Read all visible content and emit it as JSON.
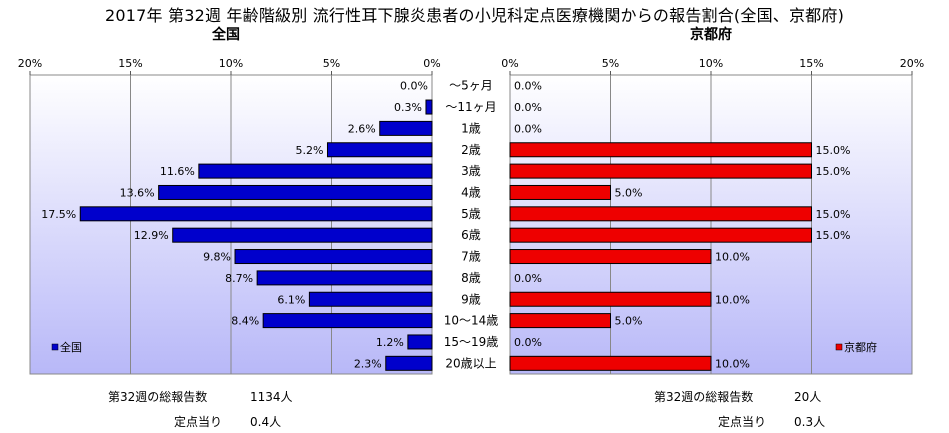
{
  "title": "2017年  第32週  年齢階級別  流行性耳下腺炎患者の小児科定点医療機関からの報告割合(全国、京都府)",
  "chart_data": [
    {
      "type": "bar",
      "orientation": "horizontal",
      "title": "全国",
      "legend": {
        "label": "全国",
        "position": "bottom-left"
      },
      "xlim": [
        0,
        20
      ],
      "x_reversed": true,
      "tick_labels": [
        "20%",
        "15%",
        "10%",
        "5%",
        "0%"
      ],
      "categories": [
        "〜5ヶ月",
        "〜11ヶ月",
        "1歳",
        "2歳",
        "3歳",
        "4歳",
        "5歳",
        "6歳",
        "7歳",
        "8歳",
        "9歳",
        "10〜14歳",
        "15〜19歳",
        "20歳以上"
      ],
      "values": [
        0.0,
        0.3,
        2.6,
        5.2,
        11.6,
        13.6,
        17.5,
        12.9,
        9.8,
        8.7,
        6.1,
        8.4,
        1.2,
        2.3
      ],
      "data_labels": [
        "0.0%",
        "0.3%",
        "2.6%",
        "5.2%",
        "11.6%",
        "13.6%",
        "17.5%",
        "12.9%",
        "9.8%",
        "8.7%",
        "6.1%",
        "8.4%",
        "1.2%",
        "2.3%"
      ],
      "bar_color": "#0000cc",
      "grid": true
    },
    {
      "type": "bar",
      "orientation": "horizontal",
      "title": "京都府",
      "legend": {
        "label": "京都府",
        "position": "bottom-right"
      },
      "xlim": [
        0,
        20
      ],
      "x_reversed": false,
      "tick_labels": [
        "0%",
        "5%",
        "10%",
        "15%",
        "20%"
      ],
      "categories": [
        "〜5ヶ月",
        "〜11ヶ月",
        "1歳",
        "2歳",
        "3歳",
        "4歳",
        "5歳",
        "6歳",
        "7歳",
        "8歳",
        "9歳",
        "10〜14歳",
        "15〜19歳",
        "20歳以上"
      ],
      "values": [
        0.0,
        0.0,
        0.0,
        15.0,
        15.0,
        5.0,
        15.0,
        15.0,
        10.0,
        0.0,
        10.0,
        5.0,
        0.0,
        10.0
      ],
      "data_labels": [
        "0.0%",
        "0.0%",
        "0.0%",
        "15.0%",
        "15.0%",
        "5.0%",
        "15.0%",
        "15.0%",
        "10.0%",
        "0.0%",
        "10.0%",
        "5.0%",
        "0.0%",
        "10.0%"
      ],
      "bar_color": "#ee0000",
      "grid": true
    }
  ],
  "stats": {
    "national": {
      "total_label": "第32週の総報告数",
      "total_value": "1134人",
      "per_label": "定点当り",
      "per_value": "0.4人"
    },
    "kyoto": {
      "total_label": "第32週の総報告数",
      "total_value": "20人",
      "per_label": "定点当り",
      "per_value": "0.3人"
    }
  },
  "colors": {
    "plot_bg_top": "#ffffff",
    "plot_bg_bottom": "#b8b8f8"
  }
}
